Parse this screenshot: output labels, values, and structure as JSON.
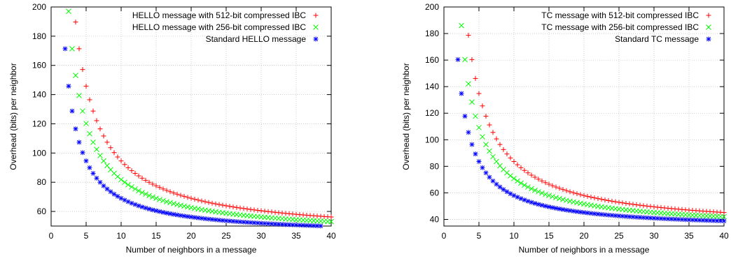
{
  "chart_data": [
    {
      "type": "scatter",
      "title": "",
      "xlabel": "Number of neighbors in a message",
      "ylabel": "Overhead (bits) per neighbor",
      "xlim": [
        0,
        40
      ],
      "ylim": [
        50,
        200
      ],
      "xticks": [
        0,
        5,
        10,
        15,
        20,
        25,
        30,
        35,
        40
      ],
      "yticks": [
        60,
        80,
        100,
        120,
        140,
        160,
        180,
        200
      ],
      "grid": "dotted",
      "legend_position": "top-right",
      "x_start": 2,
      "x_step": 0.5,
      "x_end": 40,
      "series": [
        {
          "name": "HELLO message with 512-bit compressed IBC",
          "marker": "+",
          "color": "#ff0000",
          "model": {
            "a": 43.4,
            "b": 512
          }
        },
        {
          "name": "HELLO message with 256-bit compressed IBC",
          "marker": "x",
          "color": "#00ff00",
          "model": {
            "a": 43.4,
            "b": 384
          }
        },
        {
          "name": "Standard HELLO message",
          "marker": "*",
          "color": "#0000ff",
          "model": {
            "a": 43.4,
            "b": 256
          }
        }
      ]
    },
    {
      "type": "scatter",
      "title": "",
      "xlabel": "Number of neighbors in a message",
      "ylabel": "Overhead (bits) per neighbor",
      "xlim": [
        0,
        40
      ],
      "ylim": [
        35,
        200
      ],
      "xticks": [
        0,
        5,
        10,
        15,
        20,
        25,
        30,
        35,
        40
      ],
      "yticks": [
        40,
        60,
        80,
        100,
        120,
        140,
        160,
        180,
        200
      ],
      "grid": "dotted",
      "legend_position": "top-right",
      "x_start": 2,
      "x_step": 0.5,
      "x_end": 40,
      "series": [
        {
          "name": "TC message with 512-bit compressed IBC",
          "marker": "+",
          "color": "#ff0000",
          "model": {
            "a": 32.4,
            "b": 512
          }
        },
        {
          "name": "TC message with 256-bit compressed IBC",
          "marker": "x",
          "color": "#00ff00",
          "model": {
            "a": 32.4,
            "b": 384
          }
        },
        {
          "name": "Standard TC message",
          "marker": "*",
          "color": "#0000ff",
          "model": {
            "a": 32.4,
            "b": 256
          }
        }
      ]
    }
  ]
}
